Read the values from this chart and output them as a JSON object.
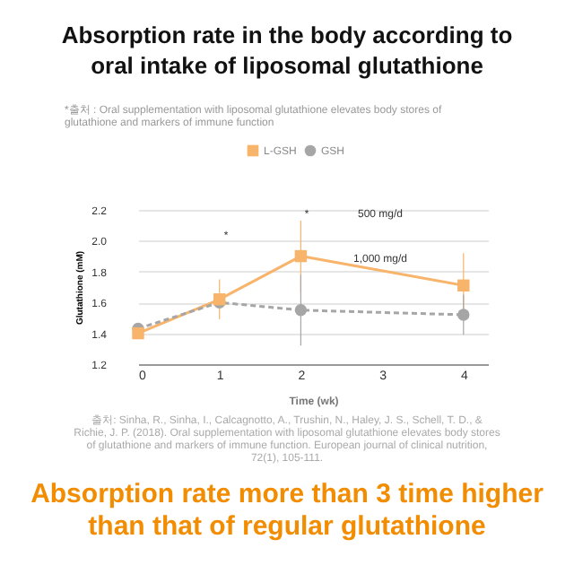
{
  "chart_data": {
    "type": "line",
    "title": "Absorption rate in the body according to oral intake of liposomal glutathione",
    "subtitle": "*출처 : Oral supplementation with liposomal glutathione elevates body stores of glutathione and markers of immune function",
    "xlabel": "Time (wk)",
    "ylabel": "Glutathione (mM)",
    "x": [
      0,
      1,
      2,
      4
    ],
    "series": [
      {
        "name": "L-GSH",
        "color": "#f7b46a",
        "marker": "square",
        "line_style": "solid",
        "values": [
          1.4,
          1.62,
          1.9,
          1.71
        ],
        "errors": [
          null,
          [
            1.49,
            1.75
          ],
          [
            1.67,
            2.13
          ],
          [
            1.5,
            1.92
          ]
        ]
      },
      {
        "name": "GSH",
        "color": "#a6a6a6",
        "marker": "circle",
        "line_style": "dashed",
        "values": [
          1.43,
          1.6,
          1.55,
          1.52
        ],
        "errors": [
          null,
          null,
          [
            1.32,
            1.78
          ],
          [
            1.39,
            1.65
          ]
        ]
      }
    ],
    "xlim": [
      0,
      4.3
    ],
    "xticks": [
      0,
      1,
      2,
      3,
      4
    ],
    "ylim": [
      1.2,
      2.2
    ],
    "yticks": [
      1.2,
      1.4,
      1.6,
      1.8,
      {
        "value": 2.0,
        "label": "2.0"
      },
      2.2
    ],
    "grid": "y",
    "legend": "top",
    "annotations": [
      "*",
      "*",
      "500 mg/d",
      "1,000 mg/d",
      "출처: Sinha, R., Sinha, I., Calcagnotto, A., Trushin, N., Haley, J. S., Schell, T. D., & Richie, J. P. (2018). Oral supplementation with liposomal glutathione elevates body stores of glutathione and markers of immune function. European journal of clinical nutrition, 72(1), 105-111.",
      "Absorption rate more than 3 time higher than that of regular glutathione"
    ]
  }
}
